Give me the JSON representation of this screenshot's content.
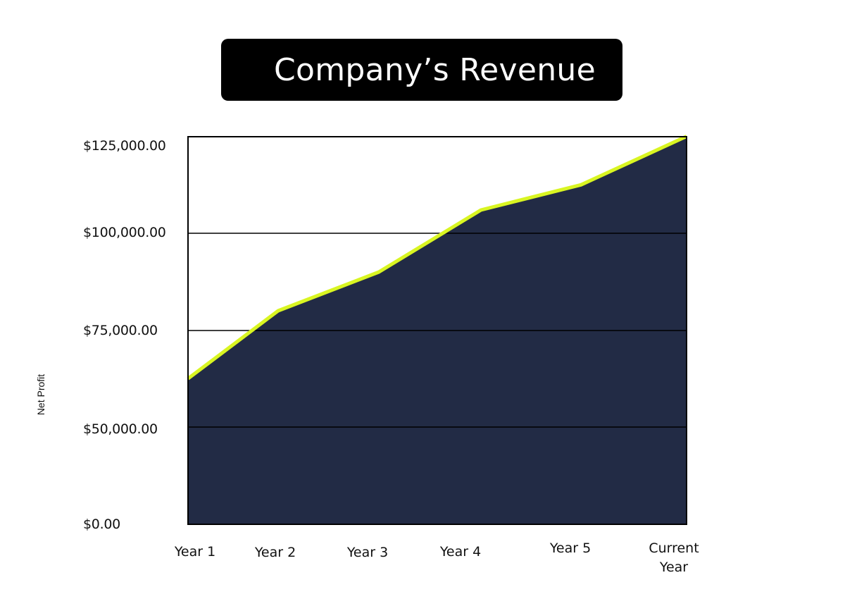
{
  "title": "Company’s Revenue",
  "y_axis_label": "Net Profit",
  "y_ticks": [
    "$125,000.00",
    "$100,000.00",
    "$75,000.00",
    "$50,000.00",
    "$0.00"
  ],
  "x_ticks": [
    "Year 1",
    "Year 2",
    "Year 3",
    "Year 4",
    "Year 5",
    "Current\nYear"
  ],
  "colors": {
    "title_bg": "#000000",
    "title_text": "#ffffff",
    "area_fill": "#222b45",
    "line": "#d9f522",
    "gridline": "#000000"
  },
  "chart_data": {
    "type": "area",
    "title": "Company’s Revenue",
    "xlabel": "",
    "ylabel": "Net Profit",
    "categories": [
      "Year 1",
      "Year 2",
      "Year 3",
      "Year 4",
      "Year 5",
      "Current Year"
    ],
    "series": [
      {
        "name": "Revenue",
        "values": [
          62500,
          80000,
          90000,
          106000,
          112500,
          125000
        ]
      }
    ],
    "y_tick_labels": [
      "$0.00",
      "$50,000.00",
      "$75,000.00",
      "$100,000.00",
      "$125,000.00"
    ],
    "ylim": [
      0,
      125000
    ],
    "grid": true,
    "legend": "none"
  }
}
